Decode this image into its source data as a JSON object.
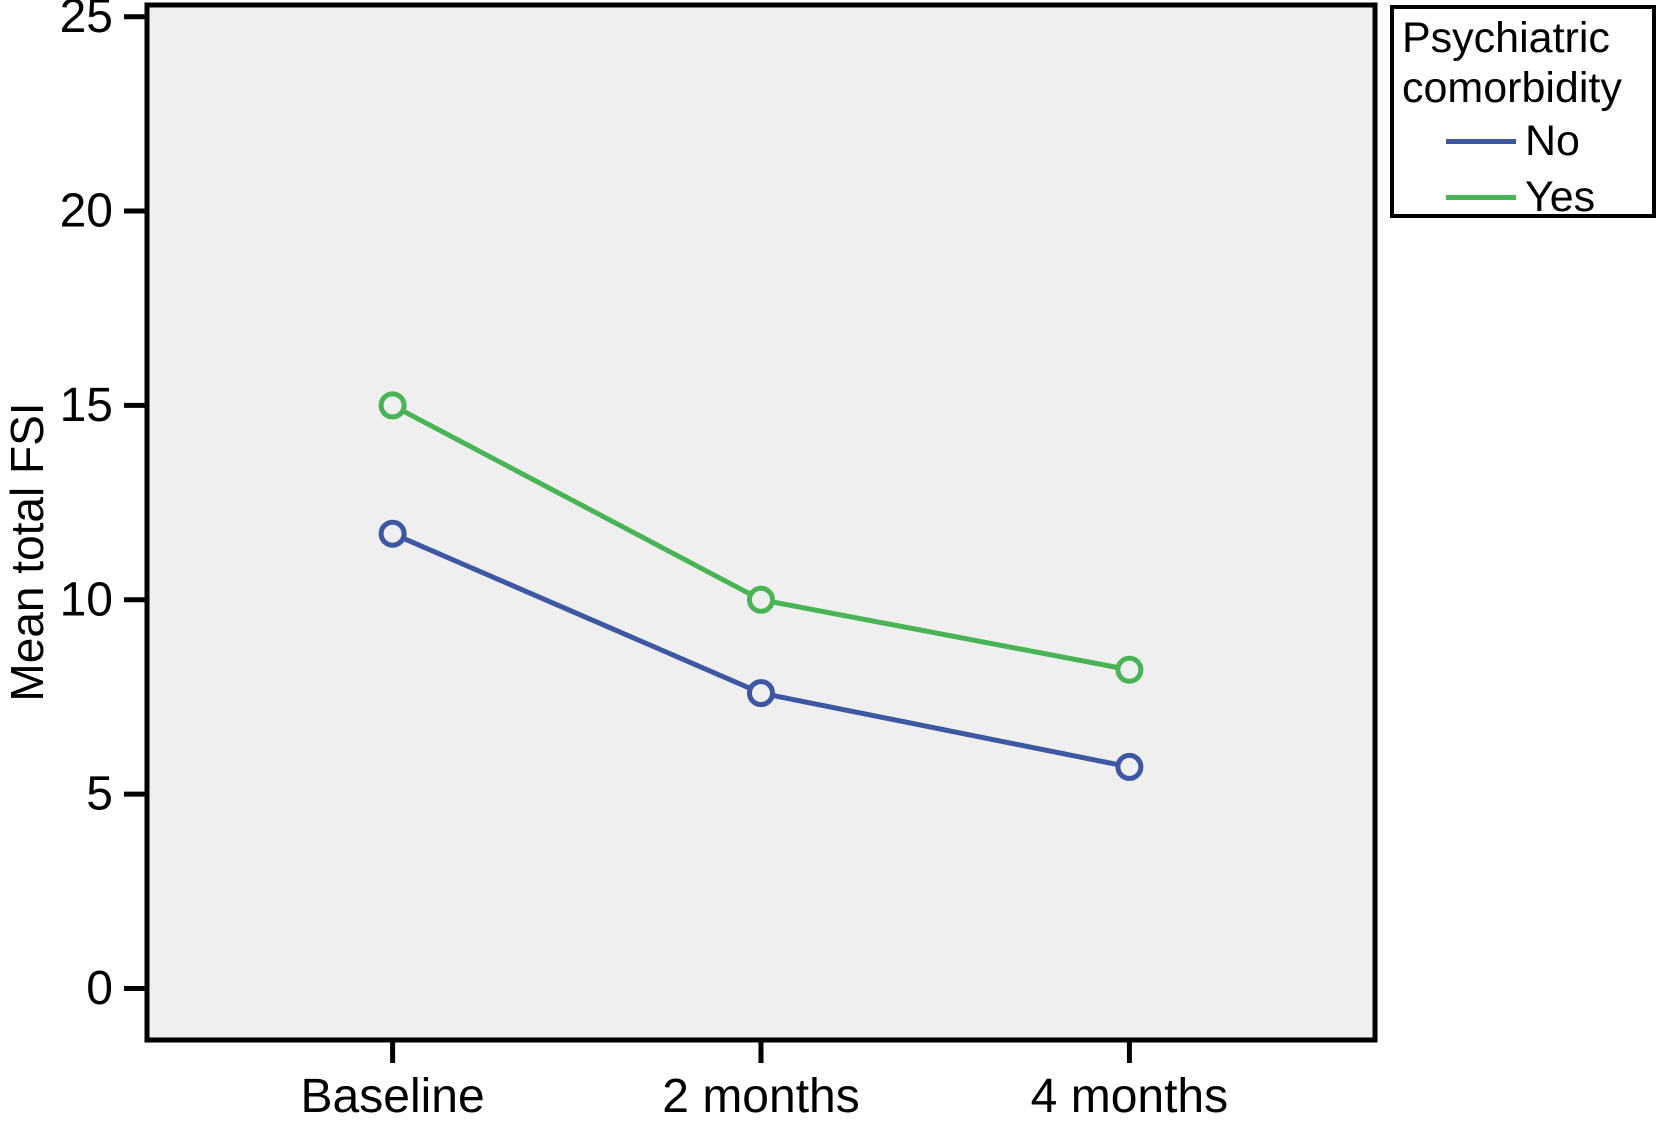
{
  "figure": {
    "background": "#ffffff",
    "plot_background": "#efefef",
    "axis_color": "#000000",
    "text_color": "#000000"
  },
  "chart_data": {
    "type": "line",
    "categories": [
      "Baseline",
      "2 months",
      "4 months"
    ],
    "series": [
      {
        "name": "No",
        "color": "#3e57a3",
        "values": [
          11.7,
          7.6,
          5.7
        ]
      },
      {
        "name": "Yes",
        "color": "#49b455",
        "values": [
          15.0,
          10.0,
          8.2
        ]
      }
    ],
    "title": "",
    "xlabel": "",
    "ylabel": "Mean total FSI",
    "ylim": [
      0,
      25
    ],
    "yticks": [
      0,
      5,
      10,
      15,
      20,
      25
    ],
    "grid": false,
    "marker": "open-circle",
    "legend_position": "top-right"
  },
  "legend": {
    "title": "Psychiatric comorbidity"
  }
}
